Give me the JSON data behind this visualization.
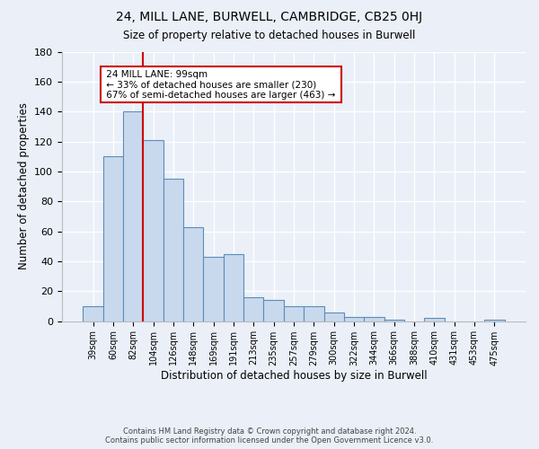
{
  "title": "24, MILL LANE, BURWELL, CAMBRIDGE, CB25 0HJ",
  "subtitle": "Size of property relative to detached houses in Burwell",
  "xlabel": "Distribution of detached houses by size in Burwell",
  "ylabel": "Number of detached properties",
  "bar_labels": [
    "39sqm",
    "60sqm",
    "82sqm",
    "104sqm",
    "126sqm",
    "148sqm",
    "169sqm",
    "191sqm",
    "213sqm",
    "235sqm",
    "257sqm",
    "279sqm",
    "300sqm",
    "322sqm",
    "344sqm",
    "366sqm",
    "388sqm",
    "410sqm",
    "431sqm",
    "453sqm",
    "475sqm"
  ],
  "bar_values": [
    10,
    110,
    140,
    121,
    95,
    63,
    43,
    45,
    16,
    14,
    10,
    10,
    6,
    3,
    3,
    1,
    0,
    2,
    0,
    0,
    1
  ],
  "bar_color": "#c9d9ed",
  "bar_edge_color": "#5b8db8",
  "vline_index": 3,
  "vline_color": "#cc0000",
  "ylim": [
    0,
    180
  ],
  "yticks": [
    0,
    20,
    40,
    60,
    80,
    100,
    120,
    140,
    160,
    180
  ],
  "annotation_title": "24 MILL LANE: 99sqm",
  "annotation_line1": "← 33% of detached houses are smaller (230)",
  "annotation_line2": "67% of semi-detached houses are larger (463) →",
  "annotation_box_color": "#ffffff",
  "annotation_box_edge": "#cc0000",
  "footer_line1": "Contains HM Land Registry data © Crown copyright and database right 2024.",
  "footer_line2": "Contains public sector information licensed under the Open Government Licence v3.0.",
  "bg_color": "#eaeff8",
  "plot_bg_color": "#eaeff8",
  "grid_color": "#ffffff"
}
